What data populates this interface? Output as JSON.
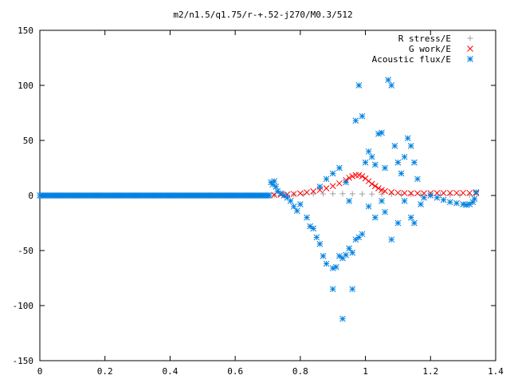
{
  "chart_data": {
    "type": "scatter",
    "title": "m2/n1.5/q1.75/r-+.52-j270/M0.3/512",
    "xlabel": "",
    "ylabel": "",
    "xlim": [
      0,
      1.4
    ],
    "ylim": [
      -150,
      150
    ],
    "x_ticks": [
      "0",
      "0.2",
      "0.4",
      "0.6",
      "0.8",
      "1",
      "1.2",
      "1.4"
    ],
    "y_ticks": [
      "150",
      "100",
      "50",
      "0",
      "-50",
      "-100",
      "-150"
    ],
    "legend_position": "top-right",
    "series": [
      {
        "name": "R stress/E",
        "marker": "+",
        "color": "#a0a0a0",
        "points": [
          [
            0.72,
            0.3
          ],
          [
            0.75,
            0.6
          ],
          [
            0.78,
            0.9
          ],
          [
            0.81,
            1.2
          ],
          [
            0.84,
            1.4
          ],
          [
            0.87,
            1.5
          ],
          [
            0.9,
            1.6
          ],
          [
            0.93,
            1.6
          ],
          [
            0.96,
            1.5
          ],
          [
            0.99,
            1.4
          ],
          [
            1.02,
            1.3
          ],
          [
            1.05,
            1.2
          ],
          [
            1.08,
            1.1
          ],
          [
            1.11,
            1.0
          ],
          [
            1.14,
            0.9
          ],
          [
            1.17,
            0.8
          ],
          [
            1.2,
            0.7
          ],
          [
            1.23,
            0.6
          ],
          [
            1.26,
            0.5
          ],
          [
            1.29,
            0.4
          ],
          [
            1.32,
            0.3
          ]
        ]
      },
      {
        "name": "G work/E",
        "marker": "x",
        "color": "#ff0000",
        "points": [
          [
            0.72,
            0.5
          ],
          [
            0.74,
            0.7
          ],
          [
            0.76,
            1.0
          ],
          [
            0.78,
            1.4
          ],
          [
            0.8,
            2.0
          ],
          [
            0.82,
            2.8
          ],
          [
            0.84,
            3.8
          ],
          [
            0.86,
            5.0
          ],
          [
            0.88,
            6.5
          ],
          [
            0.9,
            8.5
          ],
          [
            0.92,
            11
          ],
          [
            0.94,
            14
          ],
          [
            0.95,
            16
          ],
          [
            0.96,
            17.5
          ],
          [
            0.97,
            18.5
          ],
          [
            0.98,
            18.5
          ],
          [
            0.99,
            17.5
          ],
          [
            1.0,
            15.5
          ],
          [
            1.01,
            13
          ],
          [
            1.02,
            10.5
          ],
          [
            1.03,
            8.5
          ],
          [
            1.04,
            6.5
          ],
          [
            1.05,
            5.0
          ],
          [
            1.06,
            4.0
          ],
          [
            1.08,
            3.0
          ],
          [
            1.1,
            2.5
          ],
          [
            1.12,
            2.2
          ],
          [
            1.14,
            2.0
          ],
          [
            1.16,
            2.0
          ],
          [
            1.18,
            2.0
          ],
          [
            1.2,
            2.1
          ],
          [
            1.22,
            2.2
          ],
          [
            1.24,
            2.2
          ],
          [
            1.26,
            2.3
          ],
          [
            1.28,
            2.3
          ],
          [
            1.3,
            2.3
          ],
          [
            1.32,
            2.3
          ],
          [
            1.34,
            2.2
          ]
        ]
      },
      {
        "name": "Acoustic flux/E",
        "marker": "*",
        "color": "#0080e0",
        "points": [
          [
            0.71,
            12
          ],
          [
            0.715,
            10
          ],
          [
            0.72,
            13
          ],
          [
            0.725,
            8
          ],
          [
            0.73,
            4
          ],
          [
            0.74,
            2
          ],
          [
            0.75,
            0
          ],
          [
            0.76,
            -2
          ],
          [
            0.77,
            -5
          ],
          [
            0.78,
            -10
          ],
          [
            0.79,
            -14
          ],
          [
            0.8,
            -8
          ],
          [
            0.82,
            -20
          ],
          [
            0.83,
            -28
          ],
          [
            0.84,
            -30
          ],
          [
            0.85,
            -38
          ],
          [
            0.86,
            -44
          ],
          [
            0.87,
            -55
          ],
          [
            0.88,
            -62
          ],
          [
            0.9,
            -66
          ],
          [
            0.91,
            -65
          ],
          [
            0.92,
            -55
          ],
          [
            0.93,
            -57
          ],
          [
            0.94,
            -54
          ],
          [
            0.95,
            -48
          ],
          [
            0.96,
            -52
          ],
          [
            0.97,
            -40
          ],
          [
            0.98,
            -38
          ],
          [
            0.99,
            -35
          ],
          [
            0.9,
            -85
          ],
          [
            0.93,
            -112
          ],
          [
            0.96,
            -85
          ],
          [
            0.86,
            8
          ],
          [
            0.88,
            15
          ],
          [
            0.9,
            20
          ],
          [
            0.92,
            25
          ],
          [
            0.94,
            12
          ],
          [
            0.95,
            -5
          ],
          [
            0.97,
            68
          ],
          [
            0.98,
            100
          ],
          [
            0.99,
            72
          ],
          [
            1.0,
            30
          ],
          [
            1.01,
            40
          ],
          [
            1.02,
            35
          ],
          [
            1.03,
            28
          ],
          [
            1.04,
            56
          ],
          [
            1.05,
            57
          ],
          [
            1.06,
            25
          ],
          [
            1.07,
            105
          ],
          [
            1.08,
            100
          ],
          [
            1.09,
            45
          ],
          [
            1.1,
            30
          ],
          [
            1.11,
            20
          ],
          [
            1.12,
            35
          ],
          [
            1.13,
            52
          ],
          [
            1.14,
            45
          ],
          [
            1.15,
            30
          ],
          [
            1.16,
            15
          ],
          [
            1.01,
            -10
          ],
          [
            1.03,
            -20
          ],
          [
            1.05,
            -5
          ],
          [
            1.06,
            -15
          ],
          [
            1.08,
            -40
          ],
          [
            1.1,
            -25
          ],
          [
            1.12,
            -5
          ],
          [
            1.14,
            -20
          ],
          [
            1.15,
            -25
          ],
          [
            1.17,
            -8
          ],
          [
            1.18,
            -2
          ],
          [
            1.2,
            0
          ],
          [
            1.22,
            -2
          ],
          [
            1.24,
            -4
          ],
          [
            1.26,
            -6
          ],
          [
            1.28,
            -7
          ],
          [
            1.3,
            -8
          ],
          [
            1.31,
            -8.5
          ],
          [
            1.32,
            -8
          ],
          [
            1.33,
            -6
          ],
          [
            1.335,
            -3
          ],
          [
            1.34,
            3
          ]
        ]
      }
    ]
  }
}
